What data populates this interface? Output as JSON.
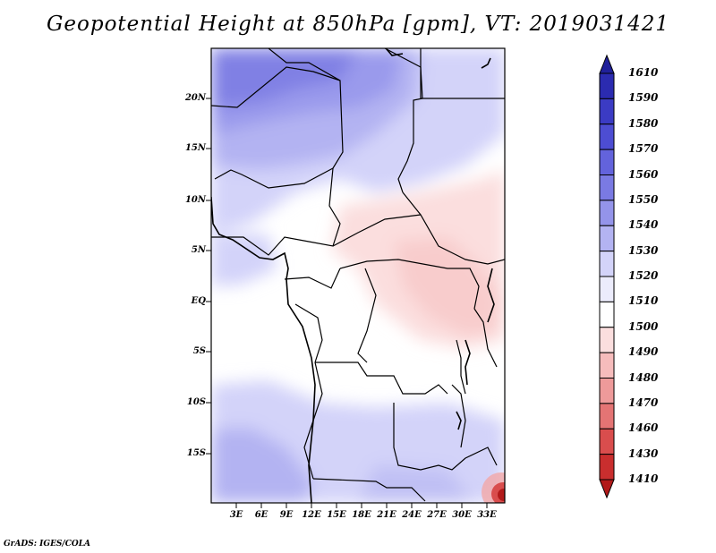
{
  "title": "Geopotential Height at 850hPa [gpm], VT: 2019031421",
  "lat_labels": [
    "20N",
    "15N",
    "10N",
    "5N",
    "EQ",
    "5S",
    "10S",
    "15S"
  ],
  "lon_labels": [
    "3E",
    "6E",
    "9E",
    "12E",
    "15E",
    "18E",
    "21E",
    "24E",
    "27E",
    "30E",
    "33E"
  ],
  "colorbar": {
    "labels": [
      "1610",
      "1590",
      "1580",
      "1570",
      "1560",
      "1550",
      "1540",
      "1530",
      "1520",
      "1510",
      "1500",
      "1490",
      "1480",
      "1470",
      "1460",
      "1430",
      "1410"
    ],
    "colors": [
      "#20209a",
      "#2b2bb0",
      "#3b3bc4",
      "#4d4dd2",
      "#6363dc",
      "#7a7ae3",
      "#9494ea",
      "#b3b3f2",
      "#d3d3f9",
      "#ececfc",
      "#ffffff",
      "#fbdede",
      "#f6bcbc",
      "#ee9a9a",
      "#e47474",
      "#d94d4d",
      "#c92e2e",
      "#b21a1a"
    ]
  },
  "credit": "GrADS: IGES/COLA"
}
